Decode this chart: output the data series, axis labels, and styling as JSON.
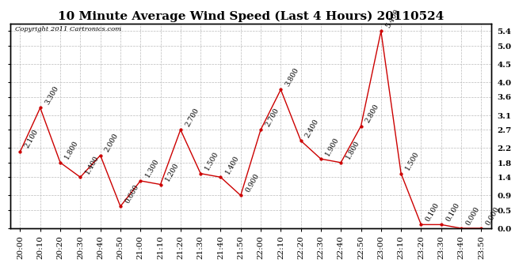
{
  "title": "10 Minute Average Wind Speed (Last 4 Hours) 20110524",
  "copyright": "Copyright 2011 Cartronics.com",
  "x_labels": [
    "20:00",
    "20:10",
    "20:20",
    "20:30",
    "20:40",
    "20:50",
    "21:00",
    "21:10",
    "21:20",
    "21:30",
    "21:40",
    "21:50",
    "22:00",
    "22:10",
    "22:20",
    "22:30",
    "22:40",
    "22:50",
    "23:00",
    "23:10",
    "23:20",
    "23:30",
    "23:40",
    "23:50"
  ],
  "y_values": [
    2.1,
    3.3,
    1.8,
    1.4,
    2.0,
    0.6,
    1.3,
    1.2,
    2.7,
    1.5,
    1.4,
    0.9,
    2.7,
    3.8,
    2.4,
    1.9,
    1.8,
    2.8,
    5.4,
    1.5,
    0.1,
    0.1,
    0.0,
    0.0
  ],
  "y_labels": [
    "2.100",
    "3.300",
    "1.800",
    "1.400",
    "2.000",
    "0.600",
    "1.300",
    "1.200",
    "2.700",
    "1.500",
    "1.400",
    "0.900",
    "2.700",
    "3.800",
    "2.400",
    "1.900",
    "1.800",
    "2.800",
    "5.400",
    "1.500",
    "0.100",
    "0.100",
    "0.000",
    "0.000"
  ],
  "line_color": "#cc0000",
  "marker_color": "#cc0000",
  "bg_color": "#ffffff",
  "grid_color": "#bbbbbb",
  "yticks": [
    0.0,
    0.5,
    0.9,
    1.4,
    1.8,
    2.2,
    2.7,
    3.1,
    3.6,
    4.0,
    4.5,
    5.0,
    5.4
  ],
  "ymax": 5.6,
  "title_fontsize": 11,
  "annotation_fontsize": 6.5,
  "tick_fontsize": 7.5,
  "copyright_fontsize": 6
}
